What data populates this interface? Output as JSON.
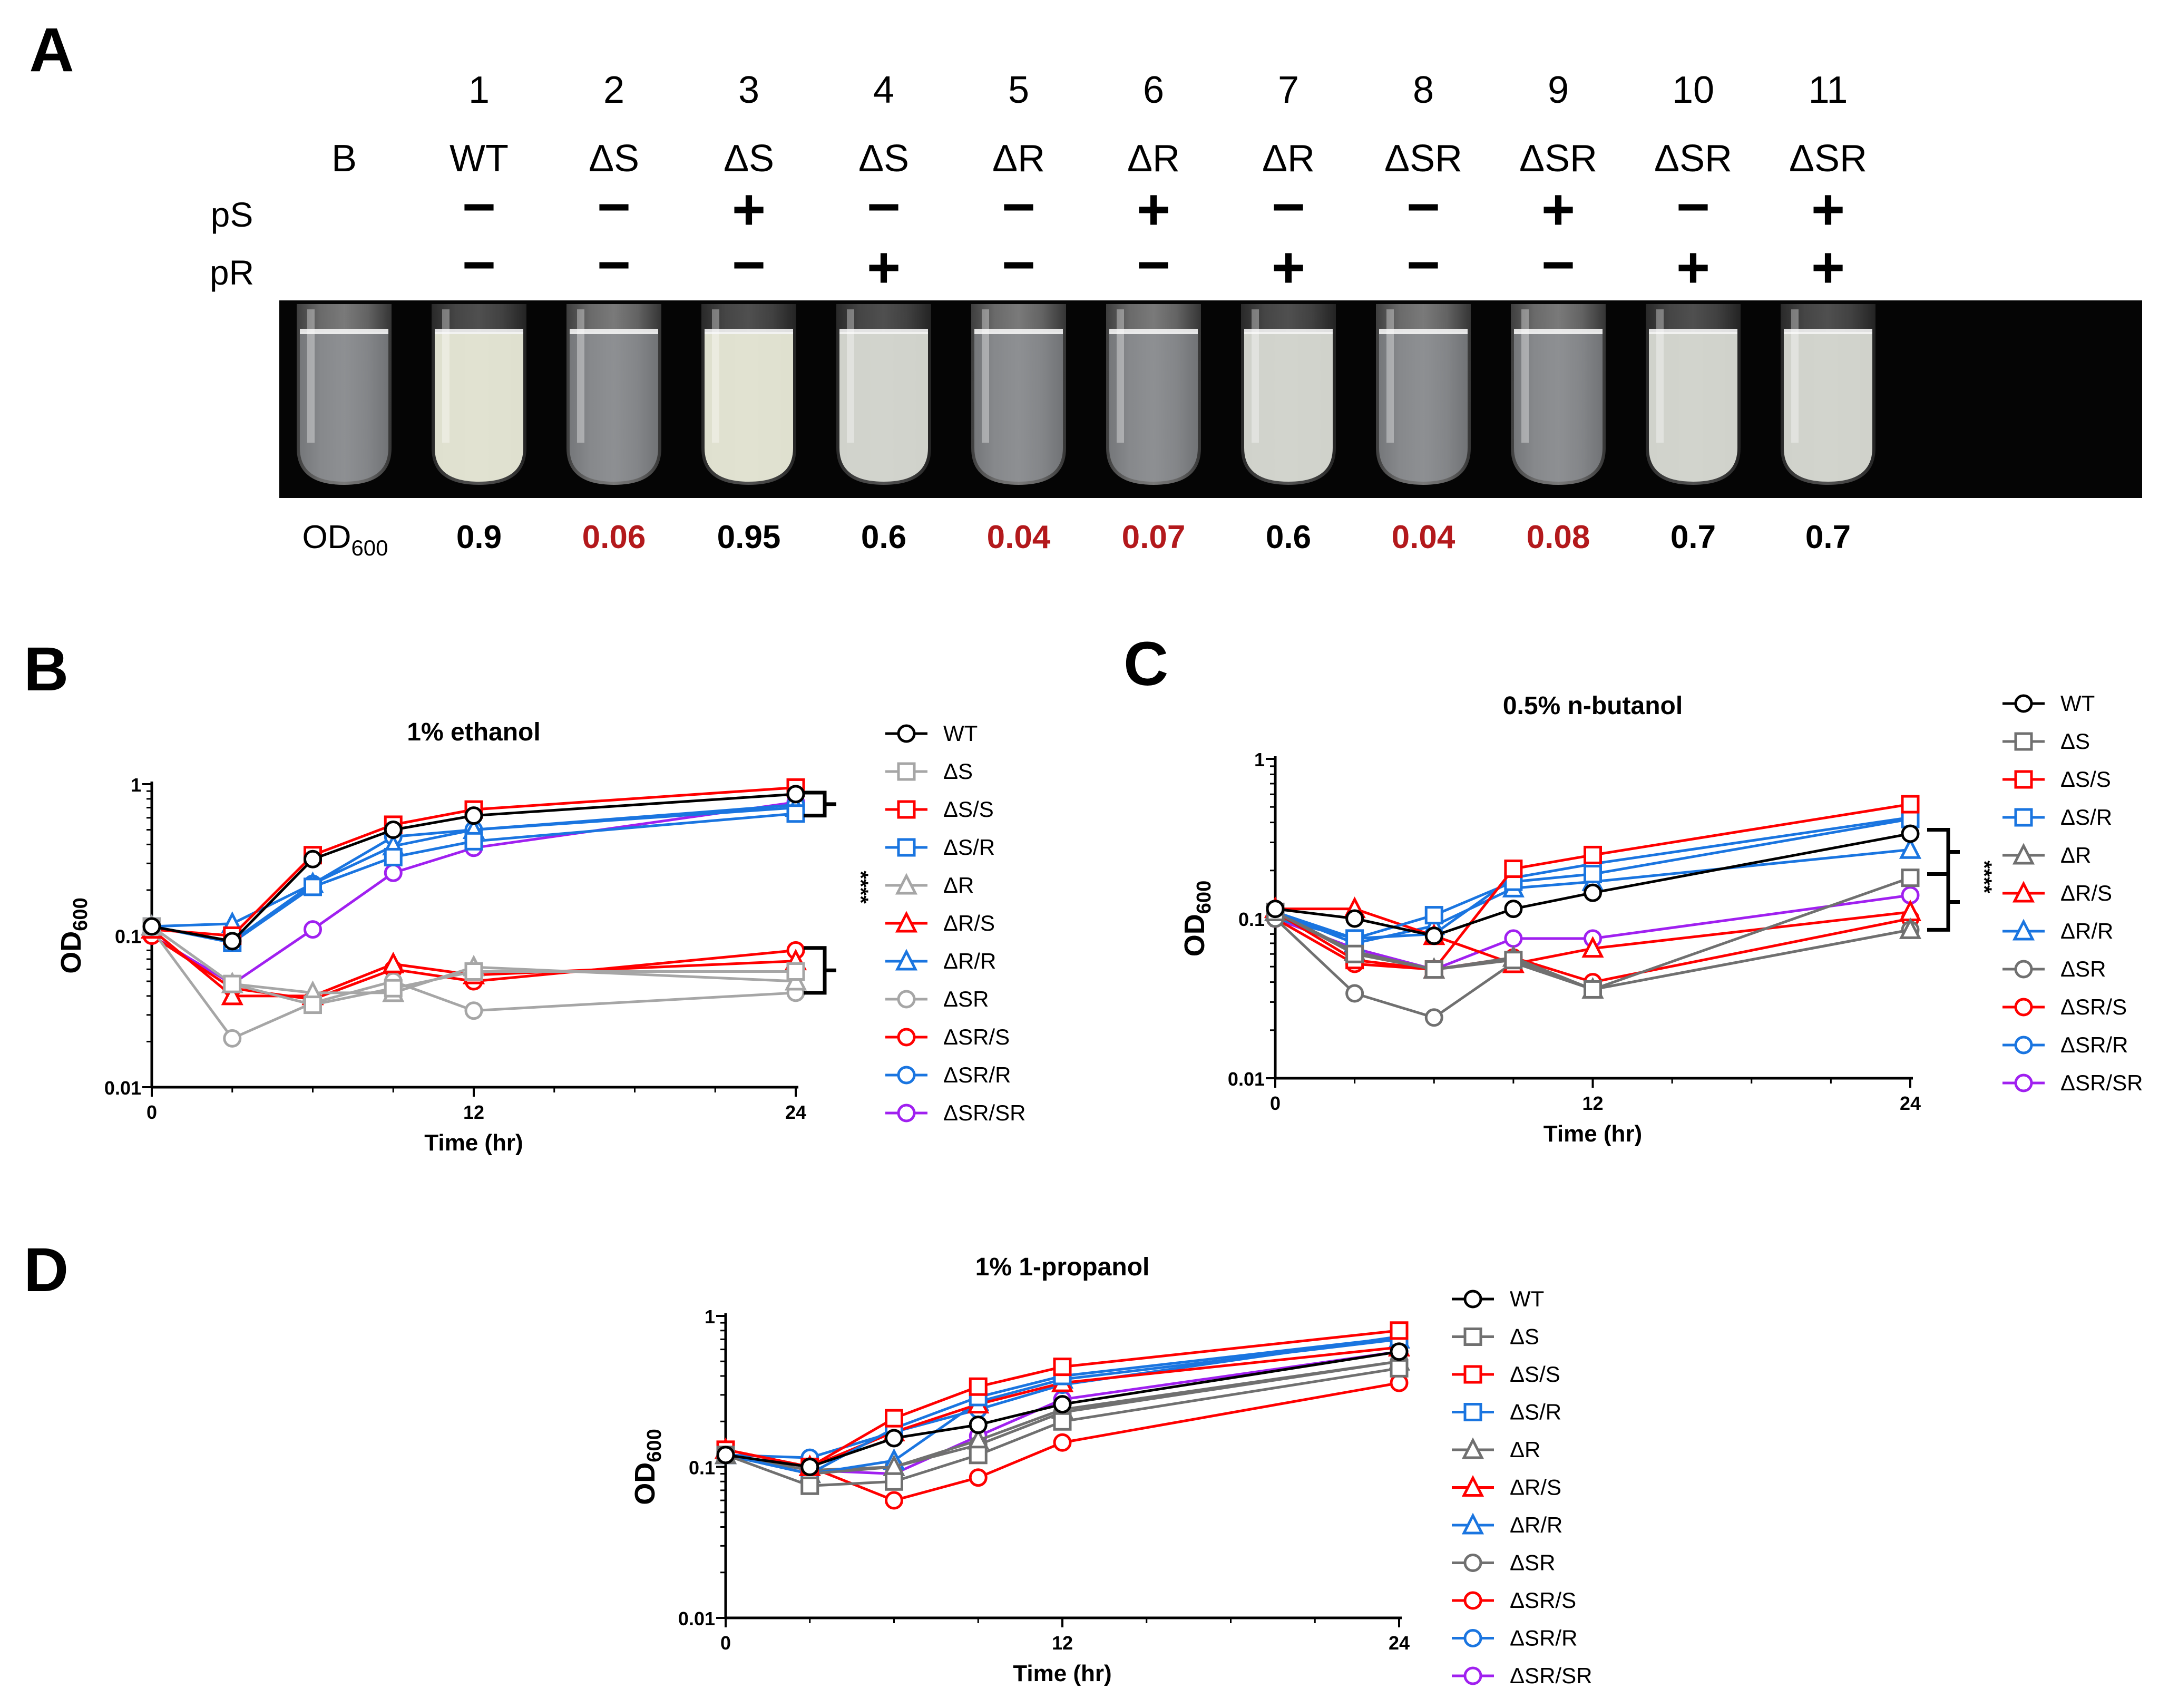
{
  "panel_a": {
    "letter": "A",
    "blank_label": "B",
    "ps_label": "pS",
    "pr_label": "pR",
    "od_label": "OD",
    "od_sub": "600",
    "tubes": [
      {
        "num": "1",
        "strain": "WT",
        "pS": "−",
        "pR": "−",
        "od": "0.9",
        "growth": "high",
        "od_color": "#000000"
      },
      {
        "num": "2",
        "strain": "ΔS",
        "pS": "−",
        "pR": "−",
        "od": "0.06",
        "growth": "none",
        "od_color": "#b3191c"
      },
      {
        "num": "3",
        "strain": "ΔS",
        "pS": "+",
        "pR": "−",
        "od": "0.95",
        "growth": "high",
        "od_color": "#000000"
      },
      {
        "num": "4",
        "strain": "ΔS",
        "pS": "−",
        "pR": "+",
        "od": "0.6",
        "growth": "mid",
        "od_color": "#000000"
      },
      {
        "num": "5",
        "strain": "ΔR",
        "pS": "−",
        "pR": "−",
        "od": "0.04",
        "growth": "none",
        "od_color": "#b3191c"
      },
      {
        "num": "6",
        "strain": "ΔR",
        "pS": "+",
        "pR": "−",
        "od": "0.07",
        "growth": "none",
        "od_color": "#b3191c"
      },
      {
        "num": "7",
        "strain": "ΔR",
        "pS": "−",
        "pR": "+",
        "od": "0.6",
        "growth": "mid",
        "od_color": "#000000"
      },
      {
        "num": "8",
        "strain": "ΔSR",
        "pS": "−",
        "pR": "−",
        "od": "0.04",
        "growth": "none",
        "od_color": "#b3191c"
      },
      {
        "num": "9",
        "strain": "ΔSR",
        "pS": "+",
        "pR": "−",
        "od": "0.08",
        "growth": "none",
        "od_color": "#b3191c"
      },
      {
        "num": "10",
        "strain": "ΔSR",
        "pS": "−",
        "pR": "+",
        "od": "0.7",
        "growth": "mid",
        "od_color": "#000000"
      },
      {
        "num": "11",
        "strain": "ΔSR",
        "pS": "+",
        "pR": "+",
        "od": "0.7",
        "growth": "mid",
        "od_color": "#000000"
      }
    ]
  },
  "chart_data": [
    {
      "type": "line",
      "panel": "B",
      "title": "1% ethanol",
      "xlabel": "Time (hr)",
      "ylabel": "OD",
      "ylabel_sub": "600",
      "yscale": "log",
      "xlim": [
        0,
        24
      ],
      "ylim": [
        0.01,
        1
      ],
      "xticks": [
        0,
        12,
        24
      ],
      "xtick_labels": [
        "0",
        "12",
        "24"
      ],
      "yticks": [
        0.01,
        0.1,
        1
      ],
      "ytick_labels": [
        "0.01",
        "0.1",
        "1"
      ],
      "significance": "****",
      "x": [
        0,
        3,
        6,
        9,
        12,
        24
      ],
      "series": [
        {
          "name": "WT",
          "color": "#000000",
          "marker": "circle",
          "values": [
            0.115,
            0.092,
            0.32,
            0.5,
            0.62,
            0.86
          ]
        },
        {
          "name": "ΔS",
          "color": "#a6a6a6",
          "marker": "square",
          "values": [
            0.115,
            0.048,
            0.035,
            0.045,
            0.058,
            0.058
          ]
        },
        {
          "name": "ΔS/S",
          "color": "#ff0000",
          "marker": "square",
          "values": [
            0.11,
            0.1,
            0.34,
            0.54,
            0.68,
            0.95
          ]
        },
        {
          "name": "ΔS/R",
          "color": "#1a75e0",
          "marker": "square",
          "values": [
            0.115,
            0.09,
            0.21,
            0.33,
            0.42,
            0.64
          ]
        },
        {
          "name": "ΔR",
          "color": "#a6a6a6",
          "marker": "triangle",
          "values": [
            0.115,
            0.048,
            0.042,
            0.042,
            0.062,
            0.05
          ]
        },
        {
          "name": "ΔR/S",
          "color": "#ff0000",
          "marker": "triangle",
          "values": [
            0.11,
            0.04,
            0.04,
            0.065,
            0.055,
            0.068
          ]
        },
        {
          "name": "ΔR/R",
          "color": "#1a75e0",
          "marker": "triangle",
          "values": [
            0.115,
            0.12,
            0.22,
            0.39,
            0.5,
            0.7
          ]
        },
        {
          "name": "ΔSR",
          "color": "#a6a6a6",
          "marker": "circle",
          "values": [
            0.11,
            0.021,
            0.036,
            0.05,
            0.032,
            0.042
          ]
        },
        {
          "name": "ΔSR/S",
          "color": "#ff0000",
          "marker": "circle",
          "values": [
            0.1,
            0.045,
            0.038,
            0.06,
            0.05,
            0.08
          ]
        },
        {
          "name": "ΔSR/R",
          "color": "#1a75e0",
          "marker": "circle",
          "values": [
            0.115,
            0.092,
            0.22,
            0.45,
            0.5,
            0.73
          ]
        },
        {
          "name": "ΔSR/SR",
          "color": "#a020f0",
          "marker": "circle",
          "values": [
            0.1,
            0.048,
            0.11,
            0.26,
            0.38,
            0.76
          ]
        }
      ]
    },
    {
      "type": "line",
      "panel": "C",
      "title": "0.5% n-butanol",
      "xlabel": "Time (hr)",
      "ylabel": "OD",
      "ylabel_sub": "600",
      "yscale": "log",
      "xlim": [
        0,
        24
      ],
      "ylim": [
        0.01,
        1
      ],
      "xticks": [
        0,
        12,
        24
      ],
      "xtick_labels": [
        "0",
        "12",
        "24"
      ],
      "yticks": [
        0.01,
        0.1,
        1
      ],
      "ytick_labels": [
        "0.01",
        "0.1",
        "1"
      ],
      "significance": "****",
      "x": [
        0,
        3,
        6,
        9,
        12,
        24
      ],
      "series": [
        {
          "name": "WT",
          "color": "#000000",
          "marker": "circle",
          "values": [
            0.115,
            0.1,
            0.078,
            0.115,
            0.145,
            0.34
          ]
        },
        {
          "name": "ΔS",
          "color": "#707070",
          "marker": "square",
          "values": [
            0.11,
            0.06,
            0.048,
            0.055,
            0.036,
            0.18
          ]
        },
        {
          "name": "ΔS/S",
          "color": "#ff0000",
          "marker": "square",
          "values": [
            0.11,
            0.055,
            0.048,
            0.205,
            0.25,
            0.52
          ]
        },
        {
          "name": "ΔS/R",
          "color": "#1a75e0",
          "marker": "square",
          "values": [
            0.11,
            0.075,
            0.105,
            0.17,
            0.19,
            0.42
          ]
        },
        {
          "name": "ΔR",
          "color": "#707070",
          "marker": "triangle",
          "values": [
            0.11,
            0.062,
            0.048,
            0.057,
            0.036,
            0.085
          ]
        },
        {
          "name": "ΔR/S",
          "color": "#ff0000",
          "marker": "triangle",
          "values": [
            0.115,
            0.115,
            0.078,
            0.052,
            0.065,
            0.11
          ]
        },
        {
          "name": "ΔR/R",
          "color": "#1a75e0",
          "marker": "triangle",
          "values": [
            0.11,
            0.07,
            0.09,
            0.155,
            0.17,
            0.27
          ]
        },
        {
          "name": "ΔSR",
          "color": "#707070",
          "marker": "circle",
          "values": [
            0.1,
            0.034,
            0.024,
            0.053,
            0.036,
            0.085
          ]
        },
        {
          "name": "ΔSR/S",
          "color": "#ff0000",
          "marker": "circle",
          "values": [
            0.1,
            0.052,
            0.048,
            0.057,
            0.04,
            0.1
          ]
        },
        {
          "name": "ΔSR/R",
          "color": "#1a75e0",
          "marker": "circle",
          "values": [
            0.1,
            0.075,
            0.08,
            0.18,
            0.22,
            0.43
          ]
        },
        {
          "name": "ΔSR/SR",
          "color": "#a020f0",
          "marker": "circle",
          "values": [
            0.1,
            0.065,
            0.048,
            0.075,
            0.075,
            0.14
          ]
        }
      ]
    },
    {
      "type": "line",
      "panel": "D",
      "title": "1% 1-propanol",
      "xlabel": "Time (hr)",
      "ylabel": "OD",
      "ylabel_sub": "600",
      "yscale": "log",
      "xlim": [
        0,
        24
      ],
      "ylim": [
        0.01,
        1
      ],
      "xticks": [
        0,
        12,
        24
      ],
      "xtick_labels": [
        "0",
        "12",
        "24"
      ],
      "yticks": [
        0.01,
        0.1,
        1
      ],
      "ytick_labels": [
        "0.01",
        "0.1",
        "1"
      ],
      "significance": "",
      "x": [
        0,
        3,
        6,
        9,
        12,
        24
      ],
      "series": [
        {
          "name": "WT",
          "color": "#000000",
          "marker": "circle",
          "values": [
            0.12,
            0.1,
            0.155,
            0.19,
            0.26,
            0.58
          ]
        },
        {
          "name": "ΔS",
          "color": "#707070",
          "marker": "square",
          "values": [
            0.12,
            0.075,
            0.08,
            0.12,
            0.2,
            0.45
          ]
        },
        {
          "name": "ΔS/S",
          "color": "#ff0000",
          "marker": "square",
          "values": [
            0.13,
            0.1,
            0.21,
            0.34,
            0.46,
            0.8
          ]
        },
        {
          "name": "ΔS/R",
          "color": "#1a75e0",
          "marker": "square",
          "values": [
            0.12,
            0.09,
            0.18,
            0.29,
            0.4,
            0.72
          ]
        },
        {
          "name": "ΔR",
          "color": "#707070",
          "marker": "triangle",
          "values": [
            0.12,
            0.09,
            0.1,
            0.15,
            0.24,
            0.5
          ]
        },
        {
          "name": "ΔR/S",
          "color": "#ff0000",
          "marker": "triangle",
          "values": [
            0.13,
            0.1,
            0.17,
            0.26,
            0.36,
            0.62
          ]
        },
        {
          "name": "ΔR/R",
          "color": "#1a75e0",
          "marker": "triangle",
          "values": [
            0.12,
            0.09,
            0.11,
            0.27,
            0.38,
            0.7
          ]
        },
        {
          "name": "ΔSR",
          "color": "#707070",
          "marker": "circle",
          "values": [
            0.12,
            0.095,
            0.1,
            0.14,
            0.23,
            0.5
          ]
        },
        {
          "name": "ΔSR/S",
          "color": "#ff0000",
          "marker": "circle",
          "values": [
            0.13,
            0.1,
            0.06,
            0.085,
            0.145,
            0.36
          ]
        },
        {
          "name": "ΔSR/R",
          "color": "#1a75e0",
          "marker": "circle",
          "values": [
            0.12,
            0.115,
            0.17,
            0.24,
            0.35,
            0.73
          ]
        },
        {
          "name": "ΔSR/SR",
          "color": "#a020f0",
          "marker": "circle",
          "values": [
            0.12,
            0.095,
            0.09,
            0.16,
            0.28,
            0.58
          ]
        }
      ]
    }
  ]
}
